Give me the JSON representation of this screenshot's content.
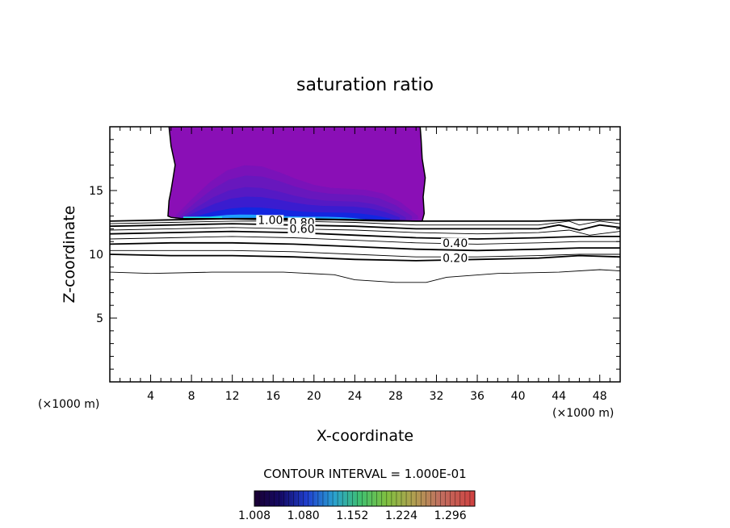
{
  "chart_data": {
    "type": "contour",
    "title": "saturation ratio",
    "xlabel": "X-coordinate",
    "ylabel": "Z-coordinate",
    "x_unit_left": "(×1000 m)",
    "x_unit_right": "(×1000 m)",
    "xlim": [
      0,
      50
    ],
    "ylim": [
      0,
      20
    ],
    "x_ticks": [
      4,
      8,
      12,
      16,
      20,
      24,
      28,
      32,
      36,
      40,
      44,
      48
    ],
    "y_ticks": [
      5,
      10,
      15
    ],
    "contour_interval_text": "CONTOUR INTERVAL = 1.000E-01",
    "contour_labels": [
      {
        "text": "1.00",
        "x": 14.5,
        "y": 12.7
      },
      {
        "text": "0.80",
        "x": 17.6,
        "y": 12.5
      },
      {
        "text": "0.60",
        "x": 17.6,
        "y": 12.0
      },
      {
        "text": "0.40",
        "x": 32.6,
        "y": 10.9
      },
      {
        "text": "0.20",
        "x": 32.6,
        "y": 9.7
      }
    ],
    "contour_levels": [
      {
        "level": 1.0,
        "bold": true,
        "points": [
          [
            0,
            12.6
          ],
          [
            6,
            12.7
          ],
          [
            12,
            12.8
          ],
          [
            18,
            12.8
          ],
          [
            24,
            12.7
          ],
          [
            30,
            12.6
          ],
          [
            36,
            12.6
          ],
          [
            42,
            12.6
          ],
          [
            46,
            12.7
          ],
          [
            50,
            12.7
          ]
        ]
      },
      {
        "level": 0.9,
        "bold": false,
        "points": [
          [
            0,
            12.4
          ],
          [
            6,
            12.5
          ],
          [
            12,
            12.6
          ],
          [
            18,
            12.6
          ],
          [
            24,
            12.5
          ],
          [
            30,
            12.3
          ],
          [
            36,
            12.3
          ],
          [
            42,
            12.3
          ],
          [
            45,
            12.6
          ],
          [
            46,
            12.3
          ],
          [
            48,
            12.6
          ],
          [
            50,
            12.4
          ]
        ]
      },
      {
        "level": 0.8,
        "bold": true,
        "points": [
          [
            0,
            12.2
          ],
          [
            6,
            12.3
          ],
          [
            12,
            12.4
          ],
          [
            18,
            12.3
          ],
          [
            24,
            12.2
          ],
          [
            30,
            12.0
          ],
          [
            36,
            12.0
          ],
          [
            42,
            12.0
          ],
          [
            44,
            12.3
          ],
          [
            46,
            11.9
          ],
          [
            48,
            12.3
          ],
          [
            50,
            12.1
          ]
        ]
      },
      {
        "level": 0.7,
        "bold": false,
        "points": [
          [
            0,
            11.9
          ],
          [
            6,
            12.0
          ],
          [
            12,
            12.1
          ],
          [
            18,
            12.0
          ],
          [
            24,
            11.9
          ],
          [
            30,
            11.7
          ],
          [
            36,
            11.6
          ],
          [
            42,
            11.7
          ],
          [
            45,
            11.9
          ],
          [
            47,
            11.5
          ],
          [
            50,
            11.8
          ]
        ]
      },
      {
        "level": 0.6,
        "bold": true,
        "points": [
          [
            0,
            11.6
          ],
          [
            6,
            11.7
          ],
          [
            12,
            11.8
          ],
          [
            18,
            11.7
          ],
          [
            24,
            11.5
          ],
          [
            30,
            11.3
          ],
          [
            36,
            11.2
          ],
          [
            42,
            11.3
          ],
          [
            46,
            11.4
          ],
          [
            50,
            11.4
          ]
        ]
      },
      {
        "level": 0.5,
        "bold": false,
        "points": [
          [
            0,
            11.2
          ],
          [
            6,
            11.3
          ],
          [
            12,
            11.4
          ],
          [
            18,
            11.3
          ],
          [
            24,
            11.1
          ],
          [
            30,
            10.9
          ],
          [
            36,
            10.8
          ],
          [
            42,
            10.9
          ],
          [
            46,
            11.0
          ],
          [
            50,
            11.0
          ]
        ]
      },
      {
        "level": 0.4,
        "bold": true,
        "points": [
          [
            0,
            10.8
          ],
          [
            6,
            10.9
          ],
          [
            12,
            10.9
          ],
          [
            18,
            10.8
          ],
          [
            24,
            10.6
          ],
          [
            30,
            10.4
          ],
          [
            36,
            10.3
          ],
          [
            42,
            10.4
          ],
          [
            46,
            10.5
          ],
          [
            50,
            10.5
          ]
        ]
      },
      {
        "level": 0.3,
        "bold": false,
        "points": [
          [
            0,
            10.3
          ],
          [
            6,
            10.3
          ],
          [
            12,
            10.3
          ],
          [
            18,
            10.2
          ],
          [
            24,
            10.0
          ],
          [
            30,
            9.8
          ],
          [
            36,
            9.8
          ],
          [
            42,
            9.9
          ],
          [
            46,
            10.0
          ],
          [
            50,
            10.0
          ]
        ]
      },
      {
        "level": 0.2,
        "bold": true,
        "points": [
          [
            0,
            10.0
          ],
          [
            6,
            9.9
          ],
          [
            12,
            9.9
          ],
          [
            18,
            9.8
          ],
          [
            24,
            9.6
          ],
          [
            30,
            9.5
          ],
          [
            36,
            9.6
          ],
          [
            42,
            9.7
          ],
          [
            46,
            9.9
          ],
          [
            50,
            9.8
          ]
        ]
      },
      {
        "level": 0.1,
        "bold": false,
        "points": [
          [
            0,
            8.6
          ],
          [
            4,
            8.5
          ],
          [
            10,
            8.6
          ],
          [
            17,
            8.6
          ],
          [
            22,
            8.4
          ],
          [
            24,
            8.0
          ],
          [
            28,
            7.8
          ],
          [
            31,
            7.8
          ],
          [
            33,
            8.2
          ],
          [
            38,
            8.5
          ],
          [
            44,
            8.6
          ],
          [
            48,
            8.8
          ],
          [
            50,
            8.7
          ]
        ]
      }
    ],
    "shaded_region": {
      "x_range": [
        5.7,
        30.8
      ],
      "y_range": [
        12.7,
        20
      ],
      "levels": [
        1.01,
        1.03,
        1.05,
        1.08,
        1.12,
        1.2
      ]
    },
    "colorbar": {
      "tick_labels": [
        "1.008",
        "1.080",
        "1.152",
        "1.224",
        "1.296"
      ],
      "range": [
        1.008,
        1.332
      ]
    },
    "colors": {
      "shade_1": "#8a0fb6",
      "shade_2": "#7a12b9",
      "shade_3": "#6817bd",
      "shade_4": "#5519c4",
      "shade_5": "#3a1ccf",
      "shade_6": "#1326e0",
      "shade_core": "#1fa0ff",
      "shade_edge": "#22e3e6"
    }
  }
}
